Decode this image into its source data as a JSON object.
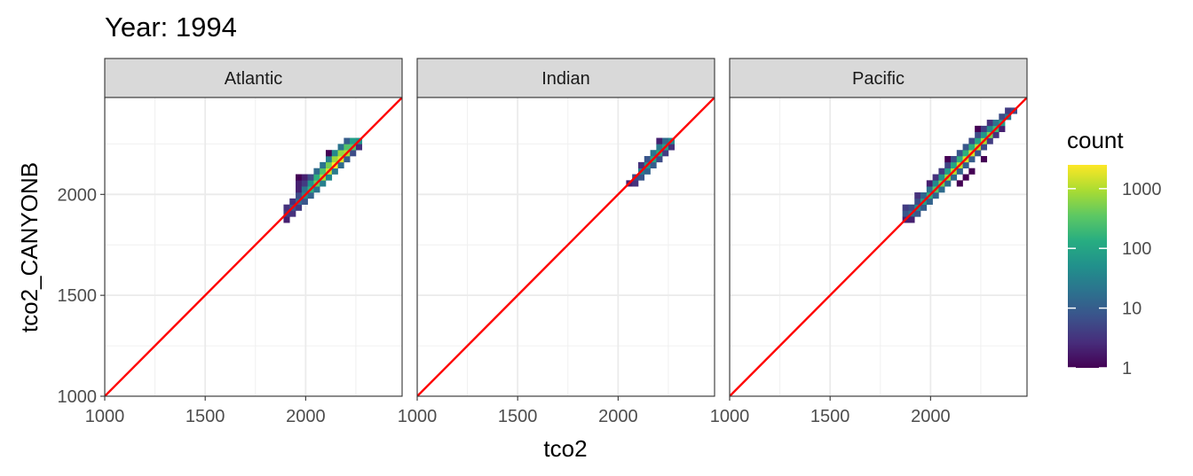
{
  "chart_data": {
    "type": "heatmap",
    "title": "Year: 1994",
    "xlabel": "tco2",
    "ylabel": "tco2_CANYONB",
    "xlim": [
      1000,
      2480
    ],
    "ylim": [
      1000,
      2480
    ],
    "x_ticks": [
      1000,
      1500,
      2000
    ],
    "y_ticks": [
      1000,
      1500,
      2000
    ],
    "grid": true,
    "reference_line": {
      "slope": 1,
      "intercept": 0,
      "color": "#ff0000"
    },
    "bin_width": 30,
    "legend": {
      "title": "count",
      "position": "right",
      "scale": "log10",
      "breaks": [
        1,
        10,
        100,
        1000
      ],
      "labels": [
        "1",
        "10",
        "100",
        "1000"
      ],
      "range": [
        1,
        2500
      ]
    },
    "facets": [
      {
        "label": "Atlantic",
        "bins": [
          [
            1905,
            1875,
            2
          ],
          [
            1905,
            1905,
            4
          ],
          [
            1905,
            1935,
            3
          ],
          [
            1935,
            1905,
            3
          ],
          [
            1935,
            1935,
            8
          ],
          [
            1935,
            1965,
            3
          ],
          [
            1965,
            1935,
            4
          ],
          [
            1965,
            1965,
            15
          ],
          [
            1965,
            1995,
            6
          ],
          [
            1965,
            2025,
            2
          ],
          [
            1965,
            2055,
            2
          ],
          [
            1965,
            2085,
            1
          ],
          [
            1995,
            1965,
            8
          ],
          [
            1995,
            1995,
            40
          ],
          [
            1995,
            2025,
            20
          ],
          [
            1995,
            2055,
            4
          ],
          [
            1995,
            2085,
            2
          ],
          [
            2025,
            1995,
            12
          ],
          [
            2025,
            2025,
            150
          ],
          [
            2025,
            2055,
            60
          ],
          [
            2025,
            2085,
            6
          ],
          [
            2055,
            2025,
            20
          ],
          [
            2055,
            2055,
            400
          ],
          [
            2055,
            2085,
            150
          ],
          [
            2055,
            2115,
            15
          ],
          [
            2085,
            2055,
            30
          ],
          [
            2085,
            2085,
            900
          ],
          [
            2085,
            2115,
            300
          ],
          [
            2085,
            2145,
            20
          ],
          [
            2115,
            2085,
            40
          ],
          [
            2115,
            2115,
            1500
          ],
          [
            2115,
            2145,
            500
          ],
          [
            2115,
            2175,
            30
          ],
          [
            2115,
            2205,
            1
          ],
          [
            2145,
            2115,
            25
          ],
          [
            2145,
            2145,
            2500
          ],
          [
            2145,
            2175,
            800
          ],
          [
            2145,
            2205,
            40
          ],
          [
            2175,
            2145,
            15
          ],
          [
            2175,
            2175,
            1800
          ],
          [
            2175,
            2205,
            700
          ],
          [
            2175,
            2235,
            20
          ],
          [
            2205,
            2175,
            10
          ],
          [
            2205,
            2205,
            1000
          ],
          [
            2205,
            2235,
            300
          ],
          [
            2205,
            2265,
            10
          ],
          [
            2235,
            2205,
            6
          ],
          [
            2235,
            2235,
            300
          ],
          [
            2235,
            2265,
            80
          ],
          [
            2265,
            2235,
            3
          ],
          [
            2265,
            2265,
            60
          ]
        ]
      },
      {
        "label": "Indian",
        "bins": [
          [
            2055,
            2055,
            2
          ],
          [
            2085,
            2055,
            3
          ],
          [
            2085,
            2085,
            6
          ],
          [
            2115,
            2085,
            8
          ],
          [
            2115,
            2115,
            30
          ],
          [
            2115,
            2145,
            3
          ],
          [
            2145,
            2115,
            12
          ],
          [
            2145,
            2145,
            60
          ],
          [
            2145,
            2175,
            8
          ],
          [
            2175,
            2145,
            10
          ],
          [
            2175,
            2175,
            100
          ],
          [
            2175,
            2205,
            20
          ],
          [
            2205,
            2175,
            6
          ],
          [
            2205,
            2205,
            120
          ],
          [
            2205,
            2235,
            25
          ],
          [
            2205,
            2265,
            2
          ],
          [
            2235,
            2205,
            4
          ],
          [
            2235,
            2235,
            80
          ],
          [
            2235,
            2265,
            15
          ],
          [
            2265,
            2235,
            3
          ],
          [
            2265,
            2265,
            40
          ]
        ]
      },
      {
        "label": "Pacific",
        "bins": [
          [
            1875,
            1875,
            2
          ],
          [
            1875,
            1905,
            8
          ],
          [
            1875,
            1935,
            4
          ],
          [
            1905,
            1905,
            20
          ],
          [
            1905,
            1935,
            6
          ],
          [
            1905,
            1875,
            2
          ],
          [
            1935,
            1905,
            8
          ],
          [
            1935,
            1935,
            40
          ],
          [
            1935,
            1965,
            6
          ],
          [
            1935,
            1995,
            3
          ],
          [
            1965,
            1935,
            10
          ],
          [
            1965,
            1965,
            80
          ],
          [
            1965,
            1995,
            12
          ],
          [
            1995,
            1965,
            12
          ],
          [
            1995,
            1995,
            150
          ],
          [
            1995,
            2025,
            20
          ],
          [
            1995,
            2055,
            2
          ],
          [
            2025,
            1995,
            12
          ],
          [
            2025,
            2025,
            300
          ],
          [
            2025,
            2055,
            40
          ],
          [
            2025,
            2085,
            3
          ],
          [
            2055,
            2025,
            15
          ],
          [
            2055,
            2055,
            500
          ],
          [
            2055,
            2085,
            60
          ],
          [
            2055,
            2115,
            4
          ],
          [
            2085,
            2055,
            15
          ],
          [
            2085,
            2085,
            800
          ],
          [
            2085,
            2115,
            80
          ],
          [
            2085,
            2145,
            5
          ],
          [
            2085,
            2175,
            1
          ],
          [
            2115,
            2085,
            15
          ],
          [
            2115,
            2115,
            1000
          ],
          [
            2115,
            2145,
            100
          ],
          [
            2115,
            2175,
            6
          ],
          [
            2145,
            2115,
            12
          ],
          [
            2145,
            2145,
            1200
          ],
          [
            2145,
            2175,
            150
          ],
          [
            2145,
            2205,
            8
          ],
          [
            2145,
            2055,
            1
          ],
          [
            2175,
            2145,
            10
          ],
          [
            2175,
            2175,
            1500
          ],
          [
            2175,
            2205,
            150
          ],
          [
            2175,
            2235,
            8
          ],
          [
            2175,
            2085,
            1
          ],
          [
            2205,
            2175,
            10
          ],
          [
            2205,
            2205,
            1500
          ],
          [
            2205,
            2235,
            150
          ],
          [
            2205,
            2265,
            6
          ],
          [
            2205,
            2115,
            1
          ],
          [
            2235,
            2205,
            8
          ],
          [
            2235,
            2235,
            1200
          ],
          [
            2235,
            2265,
            100
          ],
          [
            2235,
            2295,
            6
          ],
          [
            2235,
            2325,
            1
          ],
          [
            2265,
            2235,
            6
          ],
          [
            2265,
            2265,
            900
          ],
          [
            2265,
            2295,
            60
          ],
          [
            2265,
            2325,
            4
          ],
          [
            2265,
            2175,
            1
          ],
          [
            2295,
            2265,
            4
          ],
          [
            2295,
            2295,
            500
          ],
          [
            2295,
            2325,
            40
          ],
          [
            2295,
            2355,
            3
          ],
          [
            2325,
            2295,
            3
          ],
          [
            2325,
            2325,
            200
          ],
          [
            2325,
            2355,
            20
          ],
          [
            2355,
            2325,
            2
          ],
          [
            2355,
            2355,
            80
          ],
          [
            2355,
            2385,
            6
          ],
          [
            2385,
            2385,
            20
          ],
          [
            2385,
            2415,
            4
          ],
          [
            2415,
            2415,
            6
          ]
        ]
      }
    ]
  }
}
